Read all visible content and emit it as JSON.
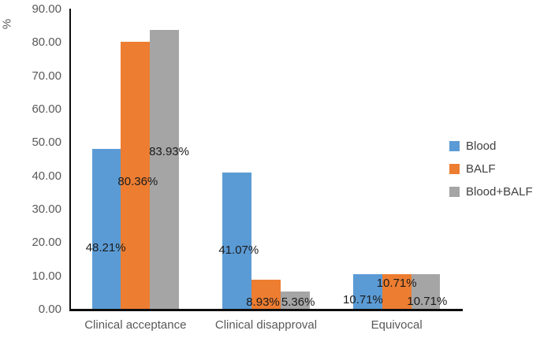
{
  "chart_data": {
    "type": "bar",
    "title": "",
    "xlabel": "",
    "ylabel": "%",
    "ylim": [
      0,
      90
    ],
    "grid": false,
    "legend_position": "right",
    "y_ticks": [
      "0.00",
      "10.00",
      "20.00",
      "30.00",
      "40.00",
      "50.00",
      "60.00",
      "70.00",
      "80.00",
      "90.00"
    ],
    "categories": [
      "Clinical acceptance",
      "Clinical disapproval",
      "Equivocal"
    ],
    "series": [
      {
        "name": "Blood",
        "color": "#5B9BD5",
        "values": [
          48.21,
          41.07,
          10.71
        ],
        "labels": [
          "48.21%",
          "41.07%",
          "10.71%"
        ]
      },
      {
        "name": "BALF",
        "color": "#ED7D31",
        "values": [
          80.36,
          8.93,
          10.71
        ],
        "labels": [
          "80.36%",
          "8.93%",
          "10.71%"
        ]
      },
      {
        "name": "Blood+BALF",
        "color": "#A5A5A5",
        "values": [
          83.93,
          5.36,
          10.71
        ],
        "labels": [
          "83.93%",
          "5.36%",
          "10.71%"
        ]
      }
    ]
  },
  "colors": {
    "axis_line": "#0d0d0d",
    "axis_text": "#595959",
    "data_label_text": "#1a1a1a",
    "legend_text": "#404040"
  }
}
